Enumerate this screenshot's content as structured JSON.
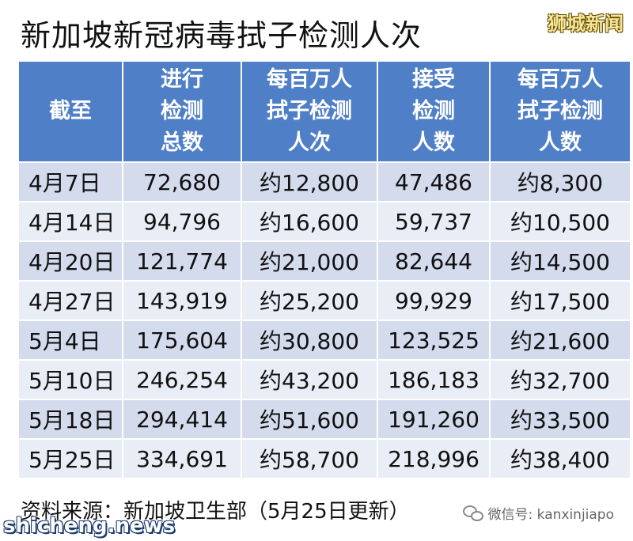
{
  "title": "新加坡新冠病毒拭子检测人次",
  "brand": "狮城新闻",
  "table": {
    "headers": [
      [
        "截至"
      ],
      [
        "进行",
        "检测",
        "总数"
      ],
      [
        "每百万人",
        "拭子检测",
        "人次"
      ],
      [
        "接受",
        "检测",
        "人数"
      ],
      [
        "每百万人",
        "拭子检测",
        "人数"
      ]
    ],
    "rows": [
      [
        "4月7日",
        "72,680",
        "约12,800",
        "47,486",
        "约8,300"
      ],
      [
        "4月14日",
        "94,796",
        "约16,600",
        "59,737",
        "约10,500"
      ],
      [
        "4月20日",
        "121,774",
        "约21,000",
        "82,644",
        "约14,500"
      ],
      [
        "4月27日",
        "143,919",
        "约25,200",
        "99,929",
        "约17,500"
      ],
      [
        "5月4日",
        "175,604",
        "约30,800",
        "123,525",
        "约21,600"
      ],
      [
        "5月10日",
        "246,254",
        "约43,200",
        "186,183",
        "约32,700"
      ],
      [
        "5月18日",
        "294,414",
        "约51,600",
        "191,260",
        "约33,500"
      ],
      [
        "5月25日",
        "334,691",
        "约58,700",
        "218,996",
        "约38,400"
      ]
    ]
  },
  "source": "资料来源：新加坡卫生部（5月25日更新）",
  "wechat": "微信号: kanxinjiapo",
  "site": "shicheng.news",
  "colors": {
    "header_bg": "#4f7fc6",
    "row_odd": "#d3dbed",
    "row_even": "#e9edf6"
  },
  "icons": [
    "wechat-icon"
  ]
}
